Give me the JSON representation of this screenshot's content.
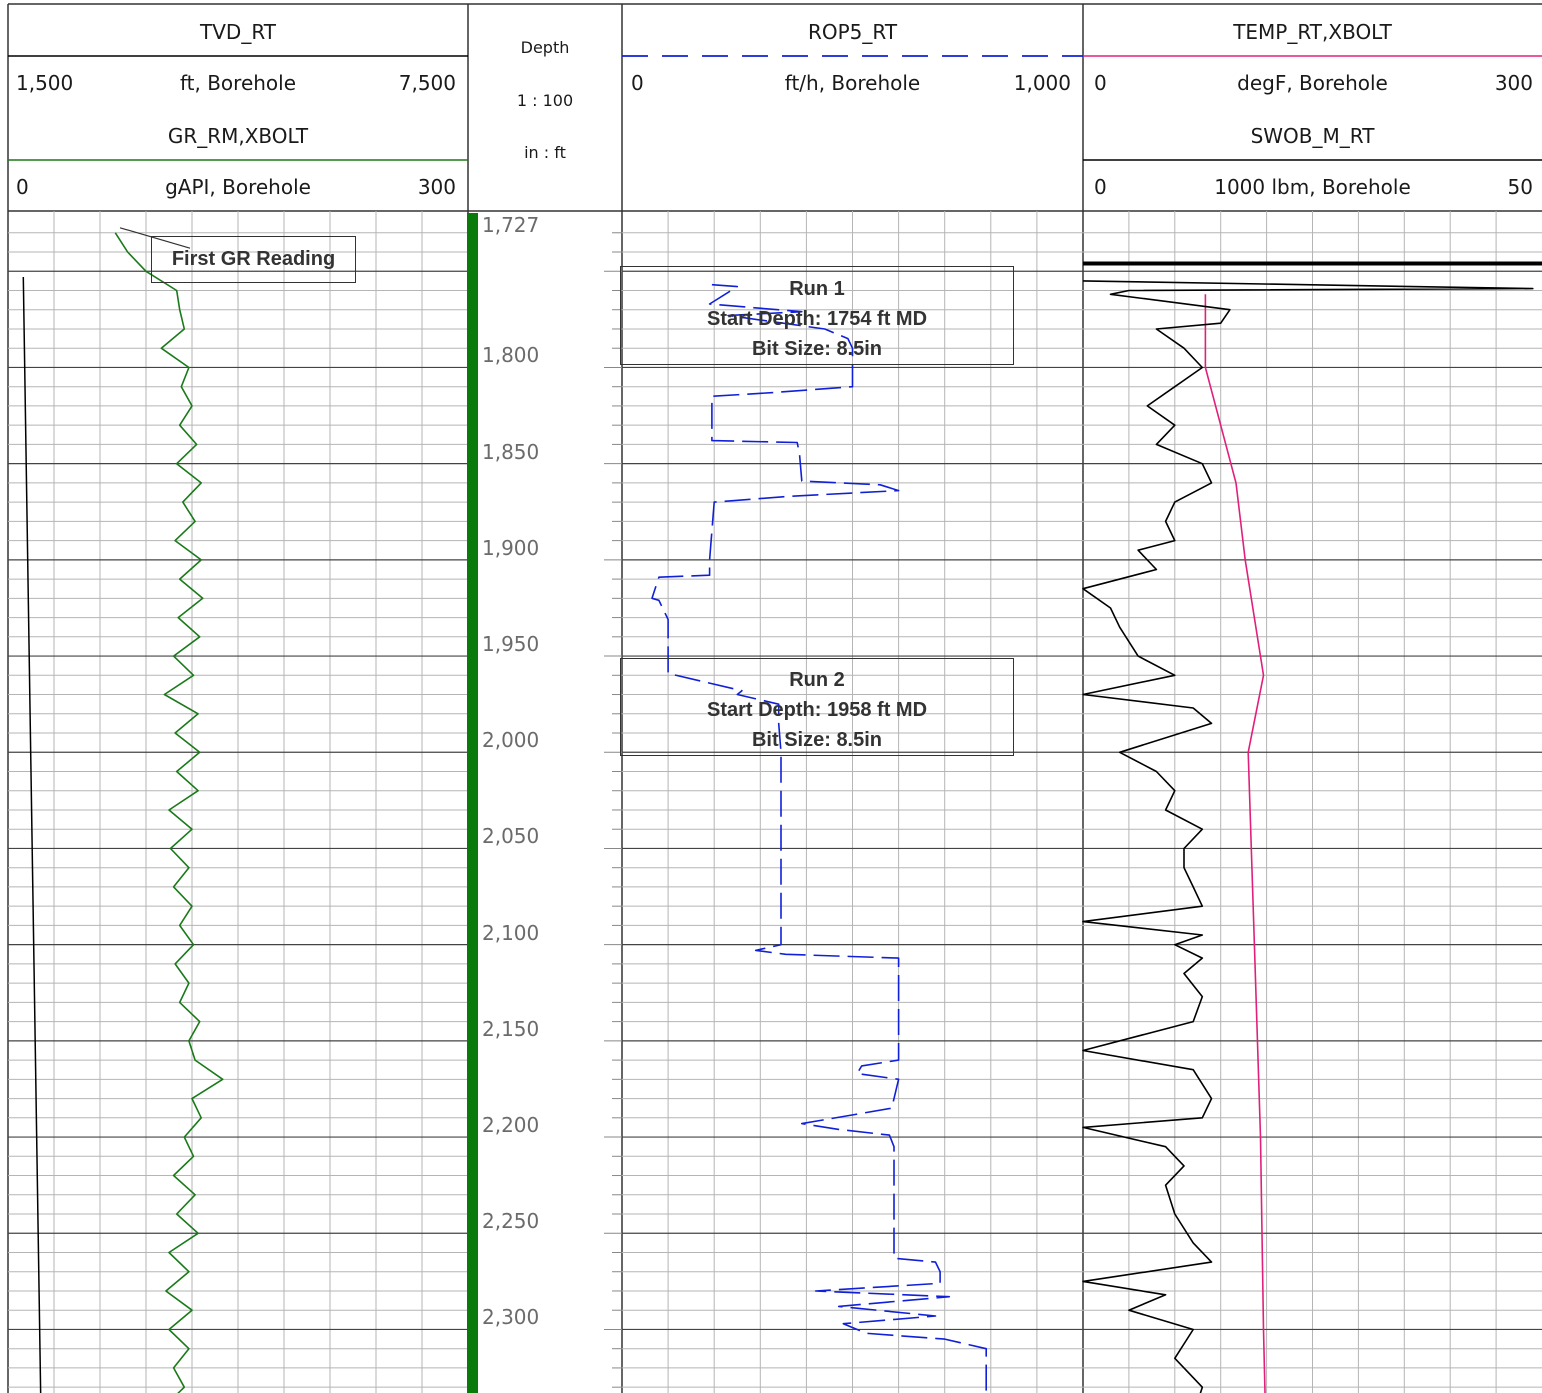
{
  "tracks": {
    "tvd": {
      "curve": "TVD_RT",
      "min": "1,500",
      "unit": "ft, Borehole",
      "max": "7,500",
      "color": "#000000"
    },
    "gr": {
      "curve": "GR_RM,XBOLT",
      "min": "0",
      "unit": "gAPI, Borehole",
      "max": "300",
      "color": "#1a7a1a"
    },
    "depth": {
      "title": "Depth",
      "scale": "1 : 100",
      "units": "in : ft",
      "bar_color": "#0a7a0a"
    },
    "rop": {
      "curve": "ROP5_RT",
      "min": "0",
      "unit": "ft/h, Borehole",
      "max": "1,000",
      "color": "#1020d8"
    },
    "temp": {
      "curve": "TEMP_RT,XBOLT",
      "min": "0",
      "unit": "degF, Borehole",
      "max": "300",
      "color": "#e0207a"
    },
    "swob": {
      "curve": "SWOB_M_RT",
      "min": "0",
      "unit": "1000 lbm, Borehole",
      "max": "50",
      "color": "#000000"
    }
  },
  "annotations": {
    "first_gr": "First GR Reading",
    "run1": {
      "title": "Run 1",
      "start": "Start Depth: 1754 ft MD",
      "bit": "Bit Size: 8.5in"
    },
    "run2": {
      "title": "Run 2",
      "start": "Start Depth: 1958 ft MD",
      "bit": "Bit Size: 8.5in"
    }
  },
  "chart_data": {
    "type": "line",
    "depth_range": [
      1727,
      2368
    ],
    "depth_ticks": [
      "1,727",
      "1,800",
      "1,850",
      "1,900",
      "1,950",
      "2,000",
      "2,050",
      "2,100",
      "2,150",
      "2,200",
      "2,250",
      "2,300"
    ],
    "depth_tick_values": [
      1727,
      1800,
      1850,
      1900,
      1950,
      2000,
      2050,
      2100,
      2150,
      2200,
      2250,
      2300
    ],
    "series": [
      {
        "name": "TVD_RT",
        "x_range": [
          1500,
          7500
        ],
        "points": [
          [
            1753,
            1700
          ],
          [
            2368,
            1940
          ]
        ]
      },
      {
        "name": "GR_RM,XBOLT",
        "x_range": [
          0,
          300
        ],
        "points": [
          [
            1730,
            70
          ],
          [
            1740,
            78
          ],
          [
            1750,
            90
          ],
          [
            1760,
            110
          ],
          [
            1770,
            112
          ],
          [
            1780,
            115
          ],
          [
            1790,
            100
          ],
          [
            1800,
            118
          ],
          [
            1810,
            113
          ],
          [
            1820,
            120
          ],
          [
            1830,
            112
          ],
          [
            1840,
            123
          ],
          [
            1850,
            110
          ],
          [
            1860,
            126
          ],
          [
            1870,
            114
          ],
          [
            1880,
            122
          ],
          [
            1890,
            109
          ],
          [
            1900,
            126
          ],
          [
            1910,
            112
          ],
          [
            1920,
            127
          ],
          [
            1930,
            111
          ],
          [
            1940,
            125
          ],
          [
            1950,
            108
          ],
          [
            1960,
            121
          ],
          [
            1970,
            102
          ],
          [
            1980,
            124
          ],
          [
            1990,
            109
          ],
          [
            2000,
            125
          ],
          [
            2010,
            110
          ],
          [
            2020,
            124
          ],
          [
            2030,
            105
          ],
          [
            2040,
            120
          ],
          [
            2050,
            106
          ],
          [
            2060,
            118
          ],
          [
            2070,
            108
          ],
          [
            2080,
            120
          ],
          [
            2090,
            112
          ],
          [
            2100,
            121
          ],
          [
            2110,
            109
          ],
          [
            2120,
            118
          ],
          [
            2130,
            112
          ],
          [
            2140,
            125
          ],
          [
            2150,
            118
          ],
          [
            2160,
            122
          ],
          [
            2170,
            140
          ],
          [
            2180,
            120
          ],
          [
            2190,
            126
          ],
          [
            2200,
            115
          ],
          [
            2210,
            121
          ],
          [
            2220,
            108
          ],
          [
            2230,
            122
          ],
          [
            2240,
            110
          ],
          [
            2250,
            124
          ],
          [
            2260,
            105
          ],
          [
            2270,
            118
          ],
          [
            2280,
            103
          ],
          [
            2290,
            120
          ],
          [
            2300,
            105
          ],
          [
            2310,
            118
          ],
          [
            2320,
            108
          ],
          [
            2330,
            115
          ],
          [
            2340,
            102
          ],
          [
            2350,
            118
          ],
          [
            2360,
            110
          ],
          [
            2368,
            112
          ]
        ]
      },
      {
        "name": "ROP5_RT",
        "x_range": [
          0,
          1000
        ],
        "points": [
          [
            1757,
            195
          ],
          [
            1758,
            250
          ],
          [
            1767,
            190
          ],
          [
            1771,
            390
          ],
          [
            1773,
            230
          ],
          [
            1780,
            440
          ],
          [
            1785,
            490
          ],
          [
            1790,
            500
          ],
          [
            1800,
            500
          ],
          [
            1810,
            500
          ],
          [
            1813,
            330
          ],
          [
            1815,
            195
          ],
          [
            1830,
            195
          ],
          [
            1838,
            195
          ],
          [
            1839,
            380
          ],
          [
            1845,
            385
          ],
          [
            1859,
            390
          ],
          [
            1861,
            560
          ],
          [
            1864,
            600
          ],
          [
            1867,
            360
          ],
          [
            1870,
            200
          ],
          [
            1900,
            190
          ],
          [
            1908,
            190
          ],
          [
            1909,
            80
          ],
          [
            1920,
            65
          ],
          [
            1921,
            80
          ],
          [
            1931,
            100
          ],
          [
            1959,
            100
          ],
          [
            1968,
            260
          ],
          [
            1970,
            250
          ],
          [
            1975,
            340
          ],
          [
            1985,
            340
          ],
          [
            2000,
            345
          ],
          [
            2100,
            345
          ],
          [
            2103,
            290
          ],
          [
            2105,
            355
          ],
          [
            2107,
            600
          ],
          [
            2113,
            600
          ],
          [
            2125,
            600
          ],
          [
            2150,
            600
          ],
          [
            2160,
            600
          ],
          [
            2163,
            520
          ],
          [
            2167,
            510
          ],
          [
            2170,
            600
          ],
          [
            2185,
            585
          ],
          [
            2193,
            390
          ],
          [
            2196,
            470
          ],
          [
            2199,
            580
          ],
          [
            2205,
            590
          ],
          [
            2215,
            590
          ],
          [
            2230,
            590
          ],
          [
            2263,
            590
          ],
          [
            2265,
            680
          ],
          [
            2270,
            690
          ],
          [
            2276,
            690
          ],
          [
            2280,
            420
          ],
          [
            2283,
            710
          ],
          [
            2288,
            470
          ],
          [
            2293,
            680
          ],
          [
            2297,
            480
          ],
          [
            2302,
            530
          ],
          [
            2305,
            700
          ],
          [
            2310,
            790
          ],
          [
            2340,
            790
          ],
          [
            2368,
            790
          ]
        ]
      },
      {
        "name": "TEMP_RT,XBOLT",
        "x_range": [
          0,
          300
        ],
        "points": [
          [
            1762,
            80
          ],
          [
            1800,
            80
          ],
          [
            1860,
            100
          ],
          [
            1900,
            106
          ],
          [
            1960,
            118
          ],
          [
            2000,
            108
          ],
          [
            2100,
            112
          ],
          [
            2200,
            116
          ],
          [
            2300,
            118
          ],
          [
            2368,
            120
          ]
        ]
      },
      {
        "name": "SWOB_M_RT",
        "x_range": [
          0,
          50
        ],
        "points": [
          [
            1755,
            0
          ],
          [
            1759,
            49
          ],
          [
            1760,
            5
          ],
          [
            1762,
            3
          ],
          [
            1770,
            16
          ],
          [
            1777,
            15
          ],
          [
            1780,
            8
          ],
          [
            1790,
            11
          ],
          [
            1800,
            13
          ],
          [
            1810,
            10
          ],
          [
            1820,
            7
          ],
          [
            1830,
            10
          ],
          [
            1840,
            8
          ],
          [
            1850,
            13
          ],
          [
            1860,
            14
          ],
          [
            1870,
            10
          ],
          [
            1880,
            9
          ],
          [
            1890,
            10
          ],
          [
            1895,
            6
          ],
          [
            1905,
            8
          ],
          [
            1915,
            0
          ],
          [
            1925,
            3
          ],
          [
            1935,
            4
          ],
          [
            1950,
            6
          ],
          [
            1960,
            10
          ],
          [
            1970,
            0
          ],
          [
            1977,
            12
          ],
          [
            1985,
            14
          ],
          [
            2000,
            4
          ],
          [
            2010,
            8
          ],
          [
            2020,
            10
          ],
          [
            2030,
            9
          ],
          [
            2040,
            13
          ],
          [
            2050,
            11
          ],
          [
            2060,
            11
          ],
          [
            2070,
            12
          ],
          [
            2080,
            13
          ],
          [
            2088,
            0
          ],
          [
            2095,
            13
          ],
          [
            2100,
            10
          ],
          [
            2107,
            13
          ],
          [
            2115,
            11
          ],
          [
            2127,
            13
          ],
          [
            2140,
            12
          ],
          [
            2155,
            0
          ],
          [
            2165,
            12
          ],
          [
            2180,
            14
          ],
          [
            2190,
            13
          ],
          [
            2195,
            0
          ],
          [
            2205,
            9
          ],
          [
            2215,
            11
          ],
          [
            2225,
            9
          ],
          [
            2240,
            10
          ],
          [
            2255,
            12
          ],
          [
            2265,
            14
          ],
          [
            2275,
            0
          ],
          [
            2282,
            9
          ],
          [
            2290,
            5
          ],
          [
            2300,
            12
          ],
          [
            2315,
            10
          ],
          [
            2330,
            13
          ],
          [
            2345,
            12
          ],
          [
            2360,
            14
          ],
          [
            2368,
            13
          ]
        ]
      }
    ]
  }
}
